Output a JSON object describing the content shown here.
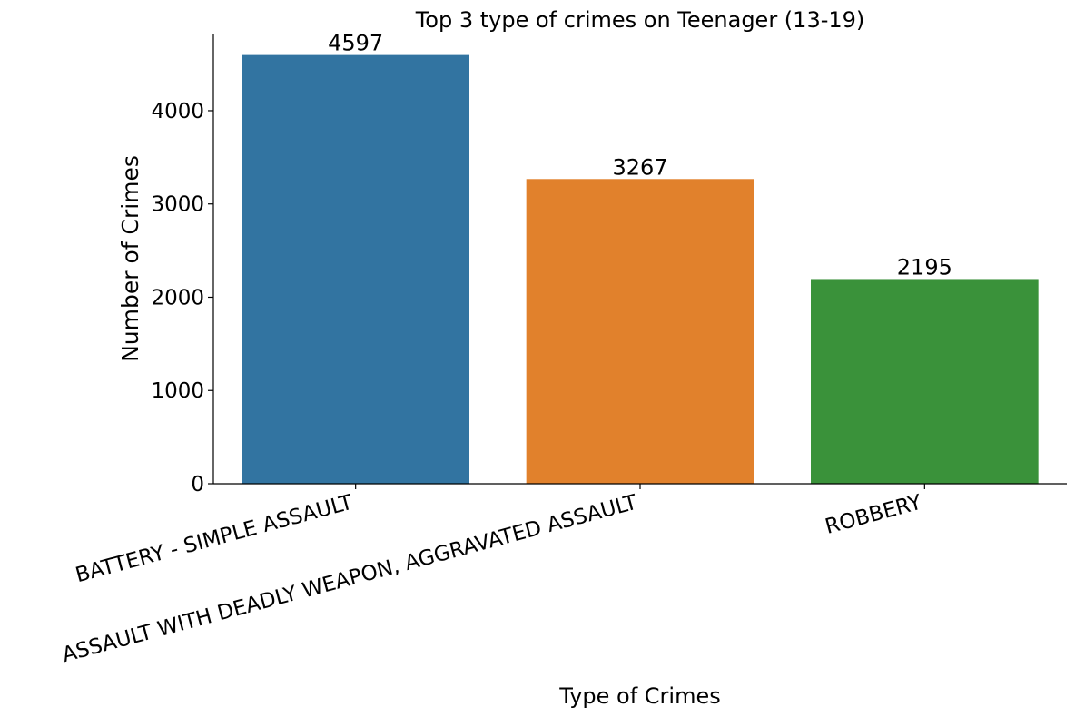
{
  "chart_data": {
    "type": "bar",
    "title": "Top 3 type of crimes on Teenager (13-19)",
    "xlabel": "Type of Crimes",
    "ylabel": "Number of Crimes",
    "categories": [
      "BATTERY - SIMPLE ASSAULT",
      "ASSAULT WITH DEADLY WEAPON, AGGRAVATED ASSAULT",
      "ROBBERY"
    ],
    "values": [
      4597,
      3267,
      2195
    ],
    "data_labels": [
      "4597",
      "3267",
      "2195"
    ],
    "colors": [
      "#3274a1",
      "#e1812c",
      "#3a923a"
    ],
    "ylim": [
      0,
      4826.85
    ],
    "yticks": [
      0,
      1000,
      2000,
      3000,
      4000
    ],
    "ytick_labels": [
      "0",
      "1000",
      "2000",
      "3000",
      "4000"
    ],
    "grid": false,
    "legend": "none"
  }
}
